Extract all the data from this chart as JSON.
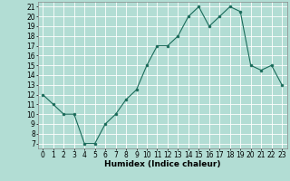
{
  "x": [
    0,
    1,
    2,
    3,
    4,
    5,
    6,
    7,
    8,
    9,
    10,
    11,
    12,
    13,
    14,
    15,
    16,
    17,
    18,
    19,
    20,
    21,
    22,
    23
  ],
  "y": [
    12,
    11,
    10,
    10,
    7,
    7,
    9,
    10,
    11.5,
    12.5,
    15,
    17,
    17,
    18,
    20,
    21,
    19,
    20,
    21,
    20.5,
    15,
    14.5,
    15,
    13
  ],
  "line_color": "#1a6b5a",
  "marker_color": "#1a6b5a",
  "bg_color": "#b2ddd4",
  "grid_color": "#ffffff",
  "xlabel": "Humidex (Indice chaleur)",
  "xlim": [
    -0.5,
    23.5
  ],
  "ylim": [
    6.5,
    21.5
  ],
  "yticks": [
    7,
    8,
    9,
    10,
    11,
    12,
    13,
    14,
    15,
    16,
    17,
    18,
    19,
    20,
    21
  ],
  "xticks": [
    0,
    1,
    2,
    3,
    4,
    5,
    6,
    7,
    8,
    9,
    10,
    11,
    12,
    13,
    14,
    15,
    16,
    17,
    18,
    19,
    20,
    21,
    22,
    23
  ],
  "label_fontsize": 6.5,
  "tick_fontsize": 5.5
}
